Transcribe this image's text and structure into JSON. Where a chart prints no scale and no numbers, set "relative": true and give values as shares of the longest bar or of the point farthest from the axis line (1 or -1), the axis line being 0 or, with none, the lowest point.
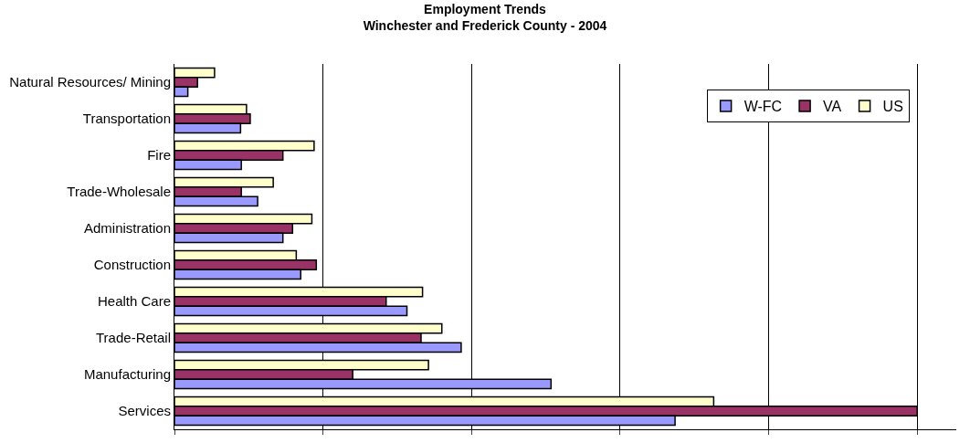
{
  "chart_data": {
    "type": "bar",
    "orientation": "horizontal",
    "relative": true,
    "title": "Employment Trends",
    "subtitle": "Winchester and Frederick County - 2004",
    "categories": [
      "Natural Resources/ Mining",
      "Transportation",
      "Fire",
      "Trade-Wholesale",
      "Administration",
      "Construction",
      "Health Care",
      "Trade-Retail",
      "Manufacturing",
      "Services"
    ],
    "series": [
      {
        "name": "W-FC",
        "color": "#9999ff",
        "values": [
          0.018,
          0.089,
          0.09,
          0.112,
          0.146,
          0.17,
          0.313,
          0.386,
          0.507,
          0.674
        ]
      },
      {
        "name": "VA",
        "color": "#993366",
        "values": [
          0.031,
          0.102,
          0.146,
          0.09,
          0.159,
          0.191,
          0.285,
          0.332,
          0.24,
          1
        ]
      },
      {
        "name": "US",
        "color": "#ffffcc",
        "values": [
          0.054,
          0.097,
          0.188,
          0.133,
          0.185,
          0.164,
          0.334,
          0.36,
          0.342,
          0.726
        ]
      }
    ],
    "grid": "x",
    "legend": "top right"
  }
}
